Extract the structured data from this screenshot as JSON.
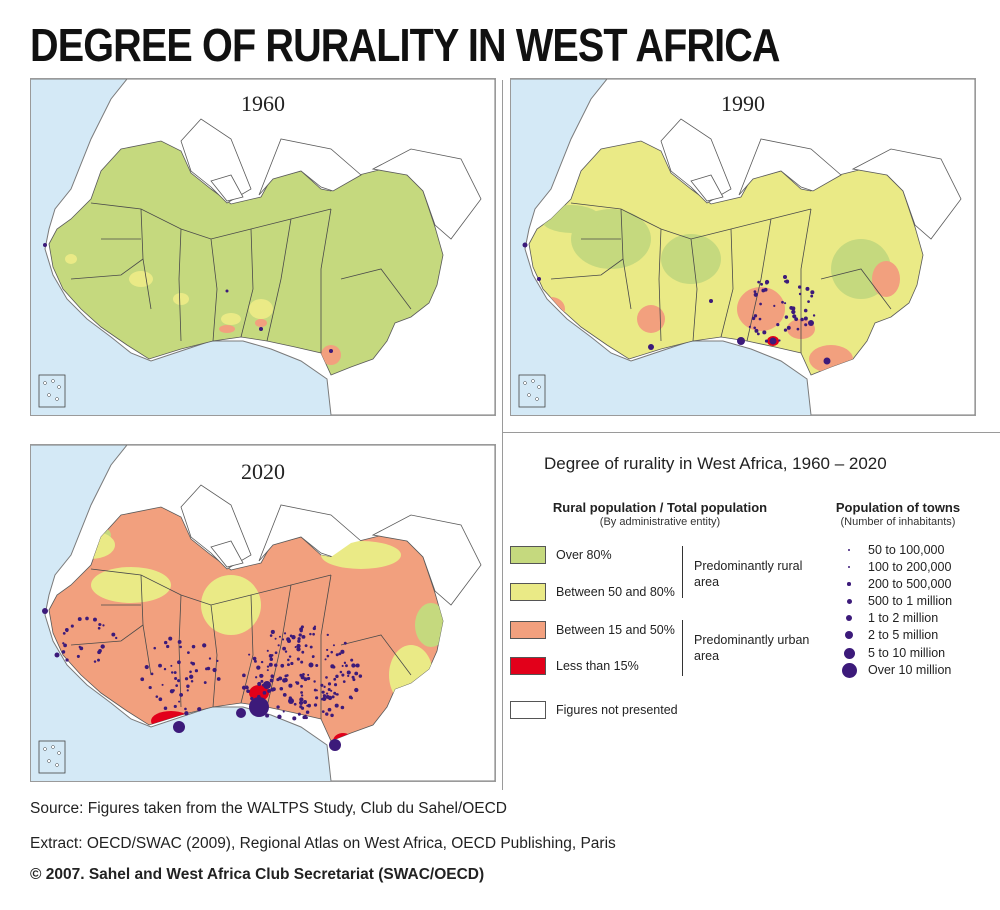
{
  "title": "DEGREE OF RURALITY IN WEST AFRICA",
  "maps": [
    {
      "year": "1960"
    },
    {
      "year": "1990"
    },
    {
      "year": "2020"
    }
  ],
  "legend": {
    "title": "Degree of rurality in West Africa, 1960 – 2020",
    "rural_header": "Rural population / Total population",
    "rural_subheader": "(By administrative entity)",
    "classes": [
      {
        "label": "Over 80%",
        "color": "#c5d97e"
      },
      {
        "label": "Between 50 and 80%",
        "color": "#eaea86"
      },
      {
        "label": "Between 15 and 50%",
        "color": "#f2a07e"
      },
      {
        "label": "Less than 15%",
        "color": "#e2001a"
      },
      {
        "label": "Figures not presented",
        "color": "#ffffff"
      }
    ],
    "groups": [
      {
        "label": "Predominantly rural area"
      },
      {
        "label": "Predominantly urban area"
      }
    ],
    "towns_header": "Population of towns",
    "towns_subheader": "(Number of inhabitants)",
    "towns": [
      {
        "label": "50 to 100,000"
      },
      {
        "label": "100 to 200,000"
      },
      {
        "label": "200 to 500,000"
      },
      {
        "label": "500 to 1 million"
      },
      {
        "label": "1 to 2 million"
      },
      {
        "label": "2 to 5 million"
      },
      {
        "label": "5 to 10 million"
      },
      {
        "label": "Over 10 million"
      }
    ],
    "town_color": "#3c1a7a"
  },
  "footer": {
    "source": "Source: Figures taken from the WALTPS Study, Club du Sahel/OECD",
    "extract": "Extract: OECD/SWAC (2009), Regional Atlas on West Africa, OECD Publishing, Paris",
    "copyright": "© 2007. Sahel and West Africa Club Secretariat (SWAC/OECD)"
  }
}
